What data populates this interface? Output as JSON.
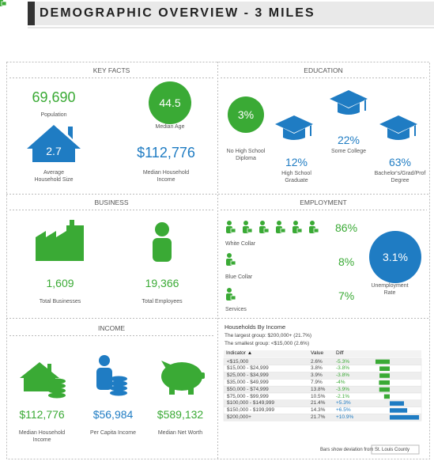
{
  "header": {
    "title": "DEMOGRAPHIC OVERVIEW - 3 MILES"
  },
  "key_facts": {
    "title": "KEY FACTS",
    "population": {
      "value": "69,690",
      "label": "Population"
    },
    "median_age": {
      "value": "44.5",
      "label": "Median Age"
    },
    "household_size": {
      "value": "2.7",
      "label": "Average Household Size"
    },
    "median_household_income": {
      "value": "$112,776",
      "label": "Median Household Income"
    }
  },
  "education": {
    "title": "EDUCATION",
    "items": [
      {
        "value": "3%",
        "label": "No High School Diploma"
      },
      {
        "value": "12%",
        "label": "High School Graduate"
      },
      {
        "value": "22%",
        "label": "Some College"
      },
      {
        "value": "63%",
        "label": "Bachelor's/Grad/Prof Degree"
      }
    ]
  },
  "business": {
    "title": "BUSINESS",
    "total_businesses": {
      "value": "1,609",
      "label": "Total Businesses"
    },
    "total_employees": {
      "value": "19,366",
      "label": "Total Employees"
    }
  },
  "employment": {
    "title": "EMPLOYMENT",
    "items": [
      {
        "label": "White Collar",
        "value": "86%"
      },
      {
        "label": "Blue Collar",
        "value": "8%"
      },
      {
        "label": "Services",
        "value": "7%"
      }
    ],
    "unemployment": {
      "value": "3.1%",
      "label": "Unemployment Rate"
    }
  },
  "income": {
    "title": "INCOME",
    "items": [
      {
        "value": "$112,776",
        "label": "Median Household Income"
      },
      {
        "value": "$56,984",
        "label": "Per Capita Income"
      },
      {
        "value": "$589,132",
        "label": "Median Net Worth"
      }
    ]
  },
  "households_by_income": {
    "title": "Households By Income",
    "notes": [
      "The largest group: $200,000+ (21.7%)",
      "The smallest group: <$15,000 (2.6%)"
    ],
    "columns": [
      "Indicator ▲",
      "Value",
      "Diff"
    ],
    "rows": [
      {
        "indicator": "<$15,000",
        "value": "2.6%",
        "diff": {
          "value": -5.3,
          "label": "-5.3%"
        }
      },
      {
        "indicator": "$15,000 - $24,999",
        "value": "3.8%",
        "diff": {
          "value": -3.8,
          "label": "-3.8%"
        }
      },
      {
        "indicator": "$25,000 - $34,999",
        "value": "3.9%",
        "diff": {
          "value": -3.8,
          "label": "-3.8%"
        }
      },
      {
        "indicator": "$35,000 - $49,999",
        "value": "7.9%",
        "diff": {
          "value": -4,
          "label": "-4%"
        }
      },
      {
        "indicator": "$50,000 - $74,999",
        "value": "13.8%",
        "diff": {
          "value": -3.9,
          "label": "-3.9%"
        }
      },
      {
        "indicator": "$75,000 - $99,999",
        "value": "10.5%",
        "diff": {
          "value": -2.1,
          "label": "-2.1%"
        }
      },
      {
        "indicator": "$100,000 - $149,999",
        "value": "21.4%",
        "diff": {
          "value": 5.3,
          "label": "+5.3%"
        }
      },
      {
        "indicator": "$150,000 - $199,999",
        "value": "14.3%",
        "diff": {
          "value": 6.5,
          "label": "+6.5%"
        }
      },
      {
        "indicator": "$200,000+",
        "value": "21.7%",
        "diff": {
          "value": 10.9,
          "label": "+10.9%"
        }
      }
    ],
    "footer": "Bars show deviation from",
    "reference": "St. Louis County"
  }
}
